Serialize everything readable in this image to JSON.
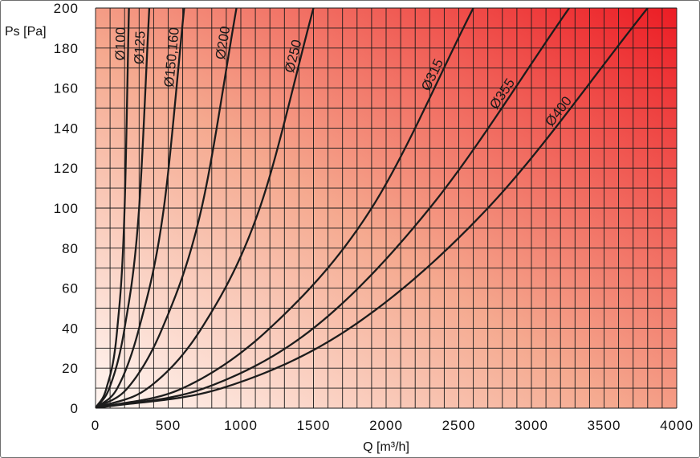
{
  "chart_data": {
    "type": "line",
    "xlabel": "Q [m³/h]",
    "ylabel": "Ps [Pa]",
    "xlim": [
      0,
      4000
    ],
    "ylim": [
      0,
      200
    ],
    "x_ticks": [
      0,
      500,
      1000,
      1500,
      2000,
      2500,
      3000,
      3500,
      4000
    ],
    "y_ticks": [
      0,
      20,
      40,
      60,
      80,
      100,
      120,
      140,
      160,
      180,
      200
    ],
    "grid": true,
    "grid_minor_x_step": 100,
    "grid_minor_y_step": 10,
    "background_gradient": {
      "from": "#fff6f2",
      "to": "#ec1c24"
    },
    "series": [
      {
        "name": "Ø100",
        "label_at_y": 182,
        "points": [
          [
            0,
            0
          ],
          [
            75,
            10
          ],
          [
            150,
            40
          ],
          [
            200,
            100
          ],
          [
            230,
            200
          ]
        ]
      },
      {
        "name": "Ø125",
        "label_at_y": 180,
        "points": [
          [
            0,
            0
          ],
          [
            95,
            10
          ],
          [
            200,
            40
          ],
          [
            300,
            100
          ],
          [
            370,
            200
          ]
        ]
      },
      {
        "name": "Ø150,160",
        "label_at_y": 175,
        "points": [
          [
            0,
            0
          ],
          [
            150,
            10
          ],
          [
            300,
            40
          ],
          [
            470,
            100
          ],
          [
            610,
            200
          ]
        ]
      },
      {
        "name": "Ø200",
        "label_at_y": 182,
        "points": [
          [
            0,
            0
          ],
          [
            220,
            10
          ],
          [
            460,
            40
          ],
          [
            730,
            100
          ],
          [
            970,
            200
          ]
        ]
      },
      {
        "name": "Ø250",
        "label_at_y": 175,
        "points": [
          [
            0,
            0
          ],
          [
            360,
            10
          ],
          [
            730,
            40
          ],
          [
            1130,
            100
          ],
          [
            1500,
            200
          ]
        ]
      },
      {
        "name": "Ø315",
        "label_at_y": 165,
        "points": [
          [
            0,
            0
          ],
          [
            600,
            10
          ],
          [
            1200,
            40
          ],
          [
            1900,
            100
          ],
          [
            2600,
            200
          ]
        ]
      },
      {
        "name": "Ø355",
        "label_at_y": 155,
        "points": [
          [
            0,
            0
          ],
          [
            750,
            10
          ],
          [
            1500,
            40
          ],
          [
            2300,
            100
          ],
          [
            3260,
            200
          ]
        ]
      },
      {
        "name": "Ø400",
        "label_at_y": 146,
        "points": [
          [
            0,
            0
          ],
          [
            870,
            10
          ],
          [
            1750,
            40
          ],
          [
            2700,
            100
          ],
          [
            3800,
            200
          ]
        ]
      }
    ]
  }
}
